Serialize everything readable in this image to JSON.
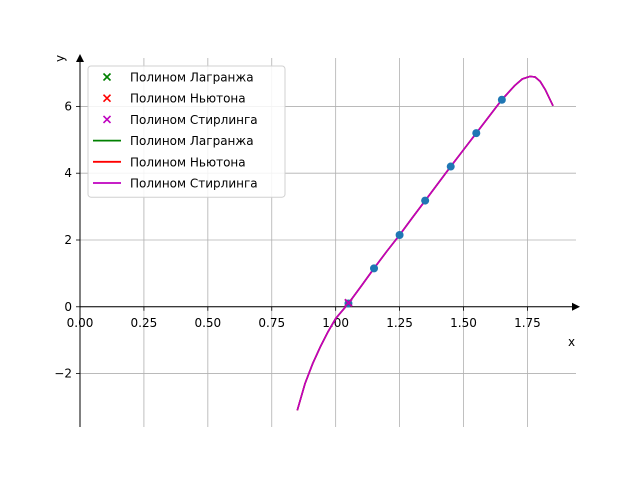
{
  "chart_data": {
    "type": "line",
    "xlabel": "x",
    "ylabel": "y",
    "xlim": [
      0.0,
      1.94
    ],
    "ylim": [
      -3.6,
      7.45
    ],
    "xticks": [
      0.0,
      0.25,
      0.5,
      0.75,
      1.0,
      1.25,
      1.5,
      1.75
    ],
    "xtick_labels": [
      "0.00",
      "0.25",
      "0.50",
      "0.75",
      "1.00",
      "1.25",
      "1.50",
      "1.75"
    ],
    "yticks": [
      -2,
      0,
      2,
      4,
      6
    ],
    "ytick_labels": [
      "−2",
      "0",
      "2",
      "4",
      "6"
    ],
    "grid": true,
    "legend_position": "top-left",
    "colors": {
      "lagrange": "#008000",
      "newton": "#ff0000",
      "stirling": "#bf00bf",
      "nodes": "#1f77b4"
    },
    "nodes": {
      "x": [
        1.05,
        1.15,
        1.25,
        1.35,
        1.45,
        1.55,
        1.65
      ],
      "y": [
        0.1,
        1.15,
        2.15,
        3.18,
        4.2,
        5.2,
        6.2
      ]
    },
    "markers": {
      "x": [
        1.05
      ],
      "y": [
        0.12
      ]
    },
    "curve": {
      "x": [
        0.85,
        0.88,
        0.91,
        0.94,
        0.97,
        1.0,
        1.05,
        1.1,
        1.15,
        1.2,
        1.25,
        1.3,
        1.35,
        1.4,
        1.45,
        1.5,
        1.55,
        1.6,
        1.65,
        1.7,
        1.73,
        1.76,
        1.78,
        1.8,
        1.82,
        1.85
      ],
      "y": [
        -3.1,
        -2.3,
        -1.7,
        -1.2,
        -0.75,
        -0.35,
        0.1,
        0.62,
        1.15,
        1.66,
        2.15,
        2.67,
        3.18,
        3.69,
        4.2,
        4.7,
        5.2,
        5.7,
        6.2,
        6.62,
        6.82,
        6.9,
        6.88,
        6.75,
        6.5,
        6.02
      ]
    },
    "legend": {
      "entries": [
        {
          "label": "Полином Лагранжа",
          "kind": "marker",
          "color_key": "lagrange"
        },
        {
          "label": "Полином Ньютона",
          "kind": "marker",
          "color_key": "newton"
        },
        {
          "label": "Полином Стирлинга",
          "kind": "marker",
          "color_key": "stirling"
        },
        {
          "label": "Полином Лагранжа",
          "kind": "line",
          "color_key": "lagrange"
        },
        {
          "label": "Полином Ньютона",
          "kind": "line",
          "color_key": "newton"
        },
        {
          "label": "Полином Стирлинга",
          "kind": "line",
          "color_key": "stirling"
        }
      ]
    }
  }
}
